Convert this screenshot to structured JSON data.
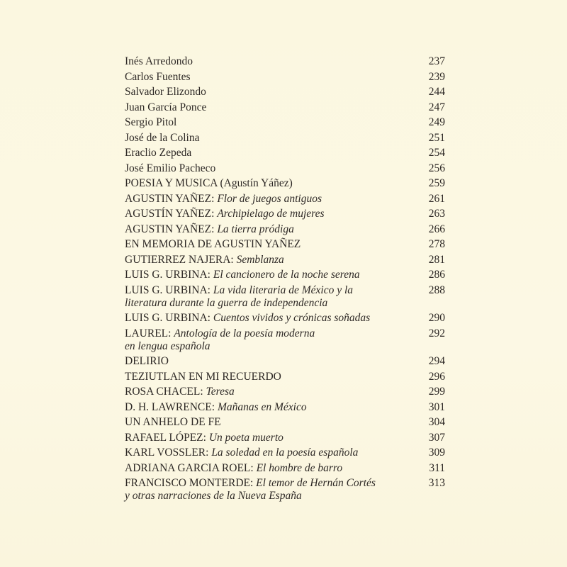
{
  "toc": [
    {
      "author": "Inés Arredondo",
      "title": "",
      "title_line2": "",
      "page": "237"
    },
    {
      "author": "Carlos Fuentes",
      "title": "",
      "title_line2": "",
      "page": "239"
    },
    {
      "author": "Salvador Elizondo",
      "title": "",
      "title_line2": "",
      "page": "244"
    },
    {
      "author": "Juan García Ponce",
      "title": "",
      "title_line2": "",
      "page": "247"
    },
    {
      "author": "Sergio Pitol",
      "title": "",
      "title_line2": "",
      "page": "249"
    },
    {
      "author": "José de la Colina",
      "title": "",
      "title_line2": "",
      "page": "251"
    },
    {
      "author": "Eraclio Zepeda",
      "title": "",
      "title_line2": "",
      "page": "254"
    },
    {
      "author": "José Emilio Pacheco",
      "title": "",
      "title_line2": "",
      "page": "256"
    },
    {
      "author": "POESIA Y MUSICA (Agustín Yáñez)",
      "title": "",
      "title_line2": "",
      "page": "259"
    },
    {
      "author": "AGUSTIN YAÑEZ: ",
      "title": "Flor de juegos antiguos",
      "title_line2": "",
      "page": "261"
    },
    {
      "author": "AGUSTÍN YAÑEZ: ",
      "title": "Archipielago de mujeres",
      "title_line2": "",
      "page": "263"
    },
    {
      "author": "AGUSTIN YAÑEZ: ",
      "title": "La tierra pródiga",
      "title_line2": "",
      "page": "266"
    },
    {
      "author": "EN MEMORIA DE AGUSTIN YAÑEZ",
      "title": "",
      "title_line2": "",
      "page": "278"
    },
    {
      "author": "GUTIERREZ NAJERA: ",
      "title": "Semblanza",
      "title_line2": "",
      "page": "281"
    },
    {
      "author": "LUIS G. URBINA: ",
      "title": "El cancionero de la noche serena",
      "title_line2": "",
      "page": "286"
    },
    {
      "author": "LUIS G. URBINA: ",
      "title": "La vida literaria de México y la",
      "title_line2": "literatura durante la guerra de independencia",
      "page": "288"
    },
    {
      "author": "LUIS G. URBINA: ",
      "title": "Cuentos vividos y crónicas soñadas",
      "title_line2": "",
      "page": "290"
    },
    {
      "author": "LAUREL: ",
      "title": "Antología de la poesía moderna",
      "title_line2": "en lengua española",
      "page": "292"
    },
    {
      "author": "DELIRIO",
      "title": "",
      "title_line2": "",
      "page": "294"
    },
    {
      "author": "TEZIUTLAN EN MI RECUERDO",
      "title": "",
      "title_line2": "",
      "page": "296"
    },
    {
      "author": "ROSA CHACEL: ",
      "title": "Teresa",
      "title_line2": "",
      "page": "299"
    },
    {
      "author": "D. H. LAWRENCE: ",
      "title": "Mañanas en México",
      "title_line2": "",
      "page": "301"
    },
    {
      "author": "UN ANHELO DE FE",
      "title": "",
      "title_line2": "",
      "page": "304"
    },
    {
      "author": "RAFAEL LÓPEZ: ",
      "title": "Un poeta muerto",
      "title_line2": "",
      "page": "307"
    },
    {
      "author": "KARL VOSSLER: ",
      "title": "La soledad en la poesía española",
      "title_line2": "",
      "page": "309"
    },
    {
      "author": "ADRIANA GARCIA ROEL: ",
      "title": "El hombre de barro",
      "title_line2": "",
      "page": "311"
    },
    {
      "author": "FRANCISCO MONTERDE: ",
      "title": "El temor de Hernán Cortés",
      "title_line2": "y otras narraciones de la Nueva España",
      "page": "313"
    }
  ]
}
